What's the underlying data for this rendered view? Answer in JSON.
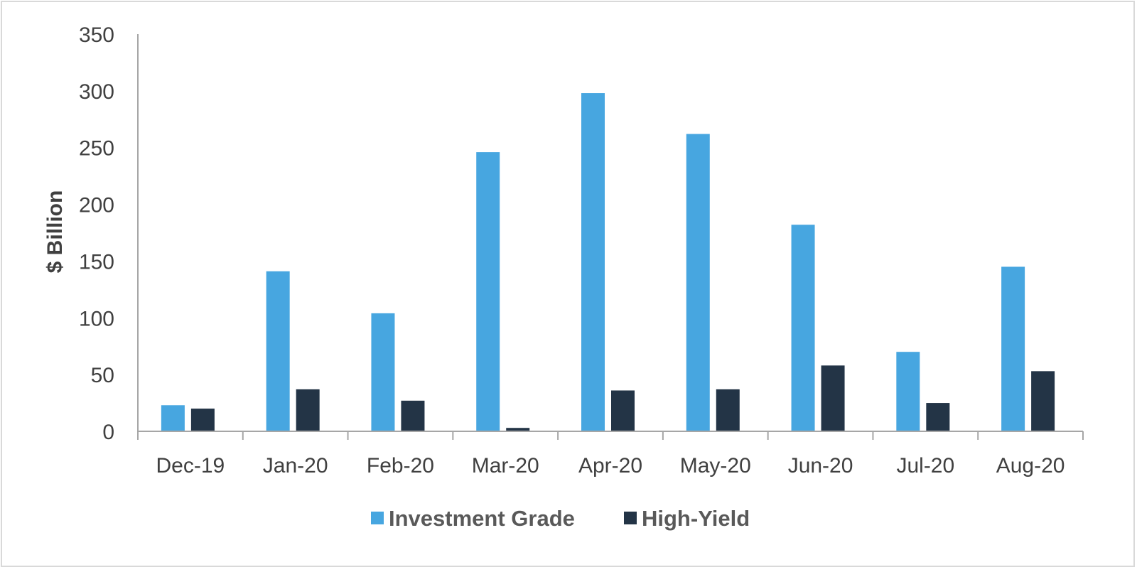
{
  "chart_data": {
    "type": "bar",
    "categories": [
      "Dec-19",
      "Jan-20",
      "Feb-20",
      "Mar-20",
      "Apr-20",
      "May-20",
      "Jun-20",
      "Jul-20",
      "Aug-20"
    ],
    "series": [
      {
        "name": "Investment Grade",
        "color": "#47a6e0",
        "values": [
          23,
          141,
          104,
          246,
          298,
          262,
          182,
          70,
          145
        ]
      },
      {
        "name": "High-Yield",
        "color": "#233446",
        "values": [
          20,
          37,
          27,
          3,
          36,
          37,
          58,
          25,
          53
        ]
      }
    ],
    "title": "",
    "xlabel": "",
    "ylabel": "$ Billion",
    "ylim": [
      0,
      350
    ],
    "yticks": [
      "0",
      "50",
      "100",
      "150",
      "200",
      "250",
      "300",
      "350"
    ],
    "grid": false,
    "legend_position": "bottom",
    "axis_color": "#a6a6a6"
  }
}
